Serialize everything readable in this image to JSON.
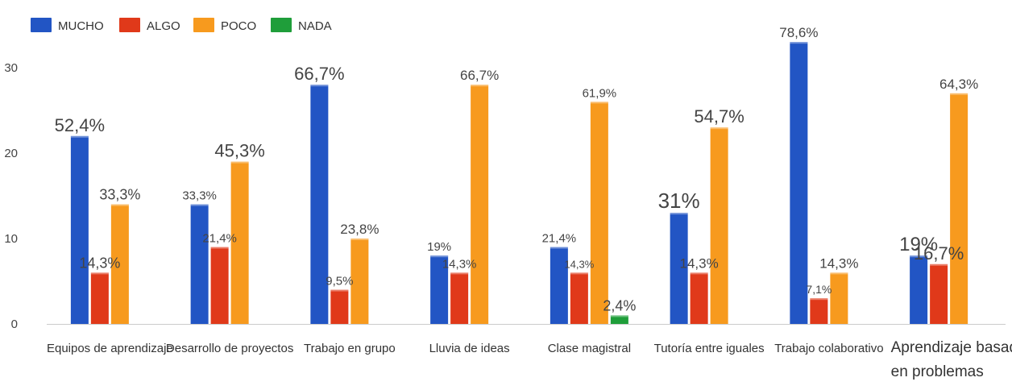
{
  "chart_data": {
    "type": "bar",
    "title": "",
    "xlabel": "",
    "ylabel": "",
    "ylim": [
      0,
      35
    ],
    "yticks": [
      0,
      10,
      20,
      30
    ],
    "grid": false,
    "legend_position": "top-left",
    "categories": [
      "Equipos de aprendizaje",
      "Desarrollo de proyectos",
      "Trabajo en grupo",
      "Lluvia de ideas",
      "Clase magistral",
      "Tutoría entre iguales",
      "Trabajo colaborativo",
      "Aprendizaje basado en problemas"
    ],
    "series": [
      {
        "name": "MUCHO",
        "color": "#2255c4",
        "values": [
          22,
          14,
          28,
          8,
          9,
          13,
          33,
          8
        ],
        "labels": [
          "52,4%",
          "33,3%",
          "66,7%",
          "19%",
          "21,4%",
          "31%",
          "78,6%",
          "19%"
        ]
      },
      {
        "name": "ALGO",
        "color": "#e0391a",
        "values": [
          6,
          9,
          4,
          6,
          6,
          6,
          3,
          7
        ],
        "labels": [
          "14,3%",
          "21,4%",
          "9,5%",
          "14,3%",
          "14,3%",
          "14,3%",
          "7,1%",
          "16,7%"
        ]
      },
      {
        "name": "POCO",
        "color": "#f79a1e",
        "values": [
          14,
          19,
          10,
          28,
          26,
          23,
          6,
          27
        ],
        "labels": [
          "33,3%",
          "45,3%",
          "23,8%",
          "66,7%",
          "61,9%",
          "54,7%",
          "14,3%",
          "64,3%"
        ]
      },
      {
        "name": "NADA",
        "color": "#1f9e3a",
        "values": [
          0,
          0,
          0,
          0,
          1,
          0,
          0,
          0
        ],
        "labels": [
          "",
          "",
          "",
          "",
          "2,4%",
          "",
          "",
          ""
        ]
      }
    ]
  }
}
